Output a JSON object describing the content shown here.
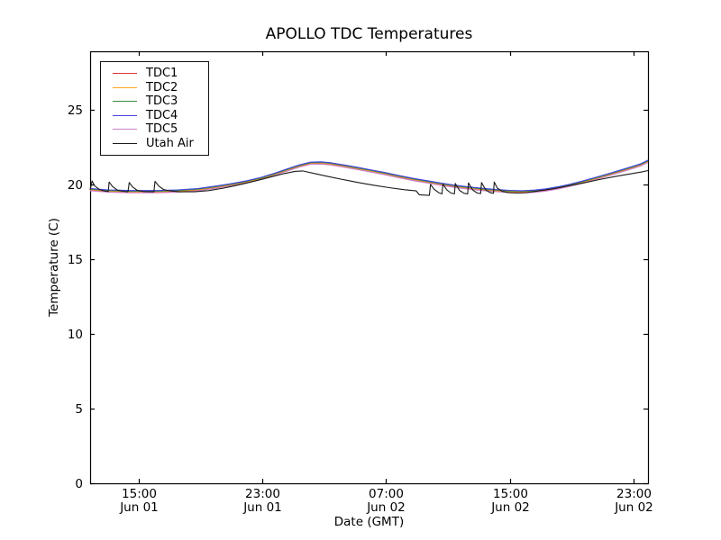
{
  "chart_data": {
    "type": "line",
    "title": "APOLLO TDC Temperatures",
    "xlabel": "Date (GMT)",
    "ylabel": "Temperature (C)",
    "grid": false,
    "legend_position": "upper left",
    "frame_color": "#000000",
    "background_color": "#ffffff",
    "x_unit_note": "hours since Jun 01 00:00 GMT",
    "xlim": [
      11.85,
      47.95
    ],
    "ylim": [
      0,
      28.9
    ],
    "y_ticks": [
      0,
      5,
      10,
      15,
      20,
      25
    ],
    "x_ticks": [
      {
        "t": 15,
        "time": "15:00",
        "date": "Jun 01"
      },
      {
        "t": 23,
        "time": "23:00",
        "date": "Jun 01"
      },
      {
        "t": 31,
        "time": "07:00",
        "date": "Jun 02"
      },
      {
        "t": 39,
        "time": "15:00",
        "date": "Jun 02"
      },
      {
        "t": 47,
        "time": "23:00",
        "date": "Jun 02"
      }
    ],
    "tdc_points": [
      [
        11.85,
        19.66
      ],
      [
        13.0,
        19.56
      ],
      [
        14.5,
        19.52
      ],
      [
        16.2,
        19.52
      ],
      [
        17.5,
        19.56
      ],
      [
        18.8,
        19.65
      ],
      [
        20.0,
        19.82
      ],
      [
        21.1,
        20.0
      ],
      [
        22.0,
        20.18
      ],
      [
        22.9,
        20.4
      ],
      [
        23.8,
        20.68
      ],
      [
        24.6,
        20.97
      ],
      [
        25.4,
        21.24
      ],
      [
        26.1,
        21.42
      ],
      [
        26.8,
        21.44
      ],
      [
        27.4,
        21.38
      ],
      [
        28.3,
        21.23
      ],
      [
        29.2,
        21.06
      ],
      [
        30.1,
        20.89
      ],
      [
        30.9,
        20.73
      ],
      [
        31.8,
        20.53
      ],
      [
        32.8,
        20.33
      ],
      [
        33.8,
        20.15
      ],
      [
        34.6,
        20.01
      ],
      [
        35.5,
        19.87
      ],
      [
        36.3,
        19.77
      ],
      [
        37.2,
        19.67
      ],
      [
        38.1,
        19.59
      ],
      [
        39.0,
        19.53
      ],
      [
        39.8,
        19.51
      ],
      [
        40.6,
        19.55
      ],
      [
        41.3,
        19.63
      ],
      [
        42.1,
        19.77
      ],
      [
        42.9,
        19.95
      ],
      [
        43.7,
        20.15
      ],
      [
        44.5,
        20.38
      ],
      [
        45.3,
        20.62
      ],
      [
        46.1,
        20.87
      ],
      [
        46.9,
        21.12
      ],
      [
        47.5,
        21.32
      ],
      [
        47.95,
        21.55
      ]
    ],
    "series": [
      {
        "name": "TDC1",
        "color": "#e03434",
        "offset": -0.045,
        "points_ref": "tdc_points"
      },
      {
        "name": "TDC2",
        "color": "#ffa51e",
        "offset": -0.01,
        "points_ref": "tdc_points"
      },
      {
        "name": "TDC3",
        "color": "#3a8e3a",
        "offset": 0.025,
        "points_ref": "tdc_points"
      },
      {
        "name": "TDC4",
        "color": "#4343e0",
        "offset": 0.065,
        "points_ref": "tdc_points"
      },
      {
        "name": "TDC5",
        "color": "#cc80cc",
        "offset": -0.085,
        "points_ref": "tdc_points"
      },
      {
        "name": "Utah Air",
        "color": "#1a1a1a",
        "offset": 0,
        "points": [
          [
            11.85,
            19.62
          ],
          [
            11.98,
            20.22
          ],
          [
            12.15,
            19.9
          ],
          [
            12.45,
            19.65
          ],
          [
            12.8,
            19.55
          ],
          [
            13.02,
            19.52
          ],
          [
            13.08,
            20.15
          ],
          [
            13.3,
            19.85
          ],
          [
            13.6,
            19.62
          ],
          [
            13.95,
            19.54
          ],
          [
            14.3,
            19.5
          ],
          [
            14.38,
            20.12
          ],
          [
            14.6,
            19.82
          ],
          [
            14.9,
            19.6
          ],
          [
            15.3,
            19.52
          ],
          [
            15.98,
            19.5
          ],
          [
            16.05,
            20.2
          ],
          [
            16.3,
            19.88
          ],
          [
            16.6,
            19.66
          ],
          [
            17.0,
            19.56
          ],
          [
            17.6,
            19.5
          ],
          [
            18.6,
            19.5
          ],
          [
            19.5,
            19.58
          ],
          [
            20.5,
            19.75
          ],
          [
            21.5,
            19.97
          ],
          [
            22.5,
            20.22
          ],
          [
            23.5,
            20.48
          ],
          [
            24.4,
            20.72
          ],
          [
            25.1,
            20.87
          ],
          [
            25.6,
            20.9
          ],
          [
            26.2,
            20.76
          ],
          [
            27.2,
            20.54
          ],
          [
            28.2,
            20.32
          ],
          [
            29.2,
            20.12
          ],
          [
            30.2,
            19.94
          ],
          [
            31.2,
            19.78
          ],
          [
            32.2,
            19.64
          ],
          [
            32.95,
            19.56
          ],
          [
            33.15,
            19.3
          ],
          [
            33.8,
            19.26
          ],
          [
            33.88,
            20.0
          ],
          [
            34.1,
            19.68
          ],
          [
            34.4,
            19.44
          ],
          [
            34.62,
            19.36
          ],
          [
            34.68,
            20.02
          ],
          [
            34.92,
            19.64
          ],
          [
            35.2,
            19.42
          ],
          [
            35.42,
            19.36
          ],
          [
            35.48,
            20.06
          ],
          [
            35.75,
            19.6
          ],
          [
            36.05,
            19.4
          ],
          [
            36.28,
            19.36
          ],
          [
            36.33,
            20.1
          ],
          [
            36.6,
            19.62
          ],
          [
            36.9,
            19.42
          ],
          [
            37.12,
            19.38
          ],
          [
            37.18,
            20.12
          ],
          [
            37.45,
            19.62
          ],
          [
            37.75,
            19.44
          ],
          [
            37.95,
            19.4
          ],
          [
            38.0,
            20.15
          ],
          [
            38.2,
            19.75
          ],
          [
            38.55,
            19.52
          ],
          [
            38.95,
            19.44
          ],
          [
            39.5,
            19.42
          ],
          [
            40.1,
            19.45
          ],
          [
            40.9,
            19.56
          ],
          [
            41.8,
            19.7
          ],
          [
            42.8,
            19.9
          ],
          [
            43.8,
            20.1
          ],
          [
            44.8,
            20.32
          ],
          [
            45.8,
            20.52
          ],
          [
            46.8,
            20.7
          ],
          [
            47.5,
            20.82
          ],
          [
            47.95,
            20.92
          ]
        ]
      }
    ]
  }
}
